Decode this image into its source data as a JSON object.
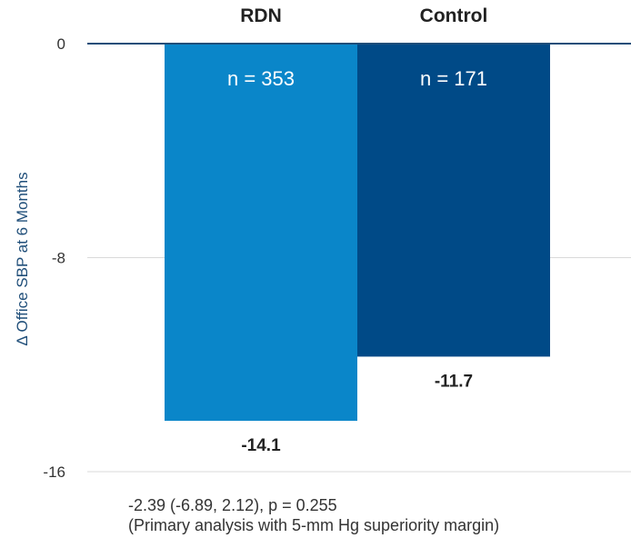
{
  "chart_data": {
    "type": "bar",
    "title": "",
    "xlabel": "",
    "ylabel": "Δ Office SBP at 6 Months",
    "ylim": [
      -16,
      0
    ],
    "yticks": [
      0,
      -8,
      -16
    ],
    "ytick_labels": [
      "0",
      "-8",
      "-16"
    ],
    "categories": [
      "RDN",
      "Control"
    ],
    "values": [
      -14.1,
      -11.7
    ],
    "value_labels": [
      "-14.1",
      "-11.7"
    ],
    "sample_labels": [
      "n = 353",
      "n = 171"
    ],
    "colors": [
      "#0a86c9",
      "#004a87"
    ],
    "grid": true
  },
  "footnote": {
    "line1": "-2.39 (-6.89, 2.12), p = 0.255",
    "line2": "(Primary analysis with 5-mm Hg superiority margin)"
  },
  "colors": {
    "axis_text": "#333333",
    "ylabel_text": "#1f4e79",
    "zero_line": "#1f4e79",
    "grid_line": "#d9d9d9"
  }
}
